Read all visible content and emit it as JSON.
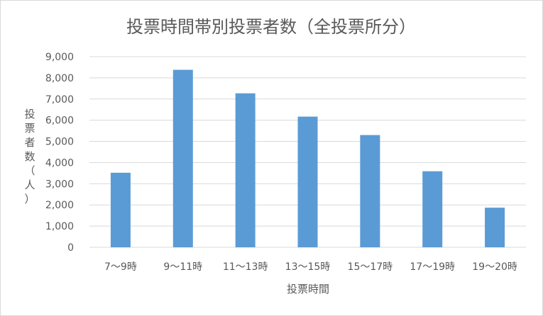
{
  "chart_data": {
    "type": "bar",
    "title": "投票時間帯別投票者数（全投票所分）",
    "xlabel": "投票時間",
    "ylabel_chars": [
      "投",
      "票",
      "者",
      "数",
      "（",
      "人",
      "）"
    ],
    "categories": [
      "7～9時",
      "9～11時",
      "11～13時",
      "13～15時",
      "15～17時",
      "17～19時",
      "19～20時"
    ],
    "values": [
      3520,
      8380,
      7270,
      6170,
      5300,
      3590,
      1870
    ],
    "ylim": [
      0,
      9000
    ],
    "yticks": [
      "0",
      "1,000",
      "2,000",
      "3,000",
      "4,000",
      "5,000",
      "6,000",
      "7,000",
      "8,000",
      "9,000"
    ],
    "bar_color": "#5b9bd5",
    "grid": true,
    "legend": "none"
  }
}
